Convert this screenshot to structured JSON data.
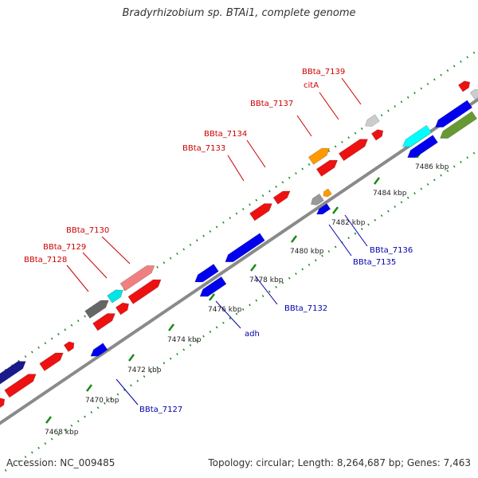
{
  "title": "Bradyrhizobium sp. BTAi1, complete genome",
  "footer": {
    "accession": "Accession: NC_009485",
    "summary": "Topology: circular; Length: 8,264,687 bp; Genes: 7,463"
  },
  "colors": {
    "backbone": "#8a8a8a",
    "tick_dots": "#1a8a1a",
    "forward_label": "#cc0000",
    "reverse_label": "#0000aa"
  },
  "scale_ticks": [
    {
      "label": "7468 kbp"
    },
    {
      "label": "7470 kbp"
    },
    {
      "label": "7472 kbp"
    },
    {
      "label": "7474 kbp"
    },
    {
      "label": "7476 kbp"
    },
    {
      "label": "7478 kbp"
    },
    {
      "label": "7480 kbp"
    },
    {
      "label": "7482 kbp"
    },
    {
      "label": "7484 kbp"
    },
    {
      "label": "7486 kbp"
    }
  ],
  "gene_labels": [
    {
      "text": "BBta_7128",
      "strand": "forward"
    },
    {
      "text": "BBta_7129",
      "strand": "forward"
    },
    {
      "text": "BBta_7130",
      "strand": "forward"
    },
    {
      "text": "BBta_7133",
      "strand": "forward"
    },
    {
      "text": "BBta_7134",
      "strand": "forward"
    },
    {
      "text": "BBta_7137",
      "strand": "forward"
    },
    {
      "text": "citA",
      "strand": "forward"
    },
    {
      "text": "BBta_7139",
      "strand": "forward"
    },
    {
      "text": "BBta_7127",
      "strand": "reverse"
    },
    {
      "text": "adh",
      "strand": "reverse"
    },
    {
      "text": "BBta_7132",
      "strand": "reverse"
    },
    {
      "text": "BBta_7135",
      "strand": "reverse"
    },
    {
      "text": "BBta_7136",
      "strand": "reverse"
    }
  ],
  "features": [
    {
      "color": "#1a1a8c"
    },
    {
      "color": "#ee1111"
    },
    {
      "color": "#ee1111"
    },
    {
      "color": "#ee1111"
    },
    {
      "color": "#ee1111"
    },
    {
      "color": "#666666"
    },
    {
      "color": "#00e5e5"
    },
    {
      "color": "#f08080"
    },
    {
      "color": "#ee1111"
    },
    {
      "color": "#ee1111"
    },
    {
      "color": "#ee1111"
    },
    {
      "color": "#ee1111"
    },
    {
      "color": "#ee1111"
    },
    {
      "color": "#ff9900"
    },
    {
      "color": "#ee1111"
    },
    {
      "color": "#ee1111"
    },
    {
      "color": "#ee1111"
    },
    {
      "color": "#cccccc"
    },
    {
      "color": "#0000ee"
    },
    {
      "color": "#0000ee"
    },
    {
      "color": "#0000ee"
    },
    {
      "color": "#0000ee"
    },
    {
      "color": "#00ffff"
    },
    {
      "color": "#0000ee"
    },
    {
      "color": "#999999"
    },
    {
      "color": "#ff9900"
    },
    {
      "color": "#0000ee"
    },
    {
      "color": "#0000ee"
    },
    {
      "color": "#669933"
    },
    {
      "color": "#cccccc"
    },
    {
      "color": "#ee1111"
    }
  ]
}
